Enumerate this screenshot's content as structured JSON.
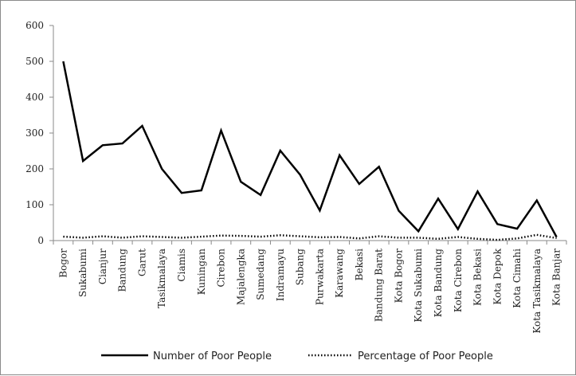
{
  "chart_data": {
    "type": "line",
    "title": "",
    "xlabel": "",
    "ylabel": "",
    "ylim": [
      0,
      600
    ],
    "yticks": [
      0,
      100,
      200,
      300,
      400,
      500,
      600
    ],
    "grid": false,
    "legend_position": "bottom",
    "categories": [
      "Bogor",
      "Sukabumi",
      "Cianjur",
      "Bandung",
      "Garut",
      "Tasikmalaya",
      "Ciamis",
      "Kuningan",
      "Cirebon",
      "Majalengka",
      "Sumedang",
      "Indramayu",
      "Subang",
      "Purwakarta",
      "Karawang",
      "Bekasi",
      "Bandung Barat",
      "Kota Bogor",
      "Kota Sukabumi",
      "Kota Bandung",
      "Kota Cirebon",
      "Kota Bekasi",
      "Kota Depok",
      "Kota Cimahi",
      "Kota Tasikmalaya",
      "Kota Banjar"
    ],
    "series": [
      {
        "name": "Number of Poor People",
        "style": "solid",
        "color": "#000000",
        "values": [
          500,
          222,
          266,
          271,
          320,
          200,
          133,
          140,
          307,
          164,
          127,
          251,
          184,
          84,
          238,
          158,
          206,
          83,
          26,
          117,
          32,
          137,
          46,
          33,
          112,
          10
        ]
      },
      {
        "name": "Percentage of Poor People",
        "style": "dotted",
        "color": "#000000",
        "values": [
          11,
          8,
          12,
          8,
          12,
          10,
          8,
          11,
          14,
          13,
          11,
          15,
          12,
          9,
          10,
          6,
          12,
          8,
          8,
          5,
          10,
          5,
          2,
          6,
          16,
          7
        ]
      }
    ]
  }
}
